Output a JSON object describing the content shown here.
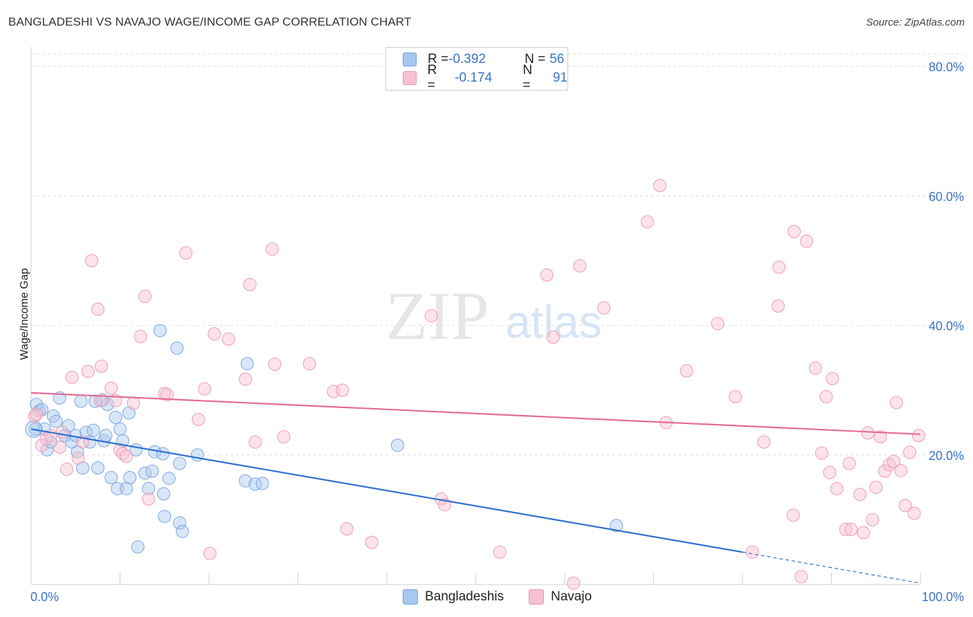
{
  "title": "BANGLADESHI VS NAVAJO WAGE/INCOME GAP CORRELATION CHART",
  "source": "Source: ZipAtlas.com",
  "watermark": {
    "zip": "ZIP",
    "atlas": "atlas"
  },
  "legend": {
    "rows": [
      {
        "r_label": "R = ",
        "r_value": "-0.392",
        "n_label": "N = ",
        "n_value": "56",
        "color": "#a8c8f0",
        "border": "#6f9fde"
      },
      {
        "r_label": "R = ",
        "r_value": "-0.174",
        "n_label": "N = ",
        "n_value": "91",
        "color": "#f8c0d0",
        "border": "#e994ac"
      }
    ]
  },
  "colors": {
    "blue_fill": "#a8c8f0",
    "blue_line": "#2f6fce",
    "pink_fill": "#f8c0d0",
    "pink_line": "#e36b95",
    "tick_label": "#3a74c8",
    "grid": "#dcdcdc"
  },
  "chart_data": {
    "type": "scatter",
    "title": "BANGLADESHI VS NAVAJO WAGE/INCOME GAP CORRELATION CHART",
    "xlabel": "",
    "ylabel": "Wage/Income Gap",
    "xlim": [
      0,
      100
    ],
    "ylim": [
      0,
      80
    ],
    "x_tick_labels": [
      "0.0%",
      "100.0%"
    ],
    "y_ticks": [
      20,
      40,
      60,
      80
    ],
    "y_tick_labels": [
      "20.0%",
      "40.0%",
      "60.0%",
      "80.0%"
    ],
    "grid": "horizontal dashed",
    "legend_position": "bottom-center",
    "series": [
      {
        "name": "Bangladeshis",
        "r": -0.392,
        "n": 56,
        "trend": {
          "x": [
            0,
            80
          ],
          "y": [
            24.0,
            5.0
          ],
          "dashed_extension": {
            "x": [
              80,
              100
            ],
            "y": [
              5.0,
              0.2
            ]
          }
        },
        "points": [
          [
            0.5,
            24.0
          ],
          [
            0.6,
            27.8
          ],
          [
            0.9,
            26.8
          ],
          [
            1.2,
            27.0
          ],
          [
            1.5,
            24.0
          ],
          [
            1.8,
            20.8
          ],
          [
            2.2,
            22.0
          ],
          [
            2.5,
            26.0
          ],
          [
            2.8,
            25.2
          ],
          [
            3.2,
            28.8
          ],
          [
            3.8,
            23.0
          ],
          [
            4.2,
            24.5
          ],
          [
            4.6,
            22.0
          ],
          [
            5.0,
            23.0
          ],
          [
            5.2,
            20.5
          ],
          [
            5.6,
            28.3
          ],
          [
            5.8,
            18.0
          ],
          [
            6.2,
            23.5
          ],
          [
            6.6,
            22.0
          ],
          [
            7.0,
            23.8
          ],
          [
            7.2,
            28.3
          ],
          [
            7.5,
            18.0
          ],
          [
            8.0,
            28.5
          ],
          [
            8.2,
            22.2
          ],
          [
            8.4,
            23.0
          ],
          [
            8.6,
            27.8
          ],
          [
            9.0,
            16.5
          ],
          [
            9.5,
            25.8
          ],
          [
            9.7,
            14.8
          ],
          [
            10.0,
            24.0
          ],
          [
            10.3,
            22.2
          ],
          [
            10.7,
            14.8
          ],
          [
            11.0,
            26.5
          ],
          [
            11.1,
            16.5
          ],
          [
            11.8,
            20.8
          ],
          [
            12.0,
            5.8
          ],
          [
            12.8,
            17.2
          ],
          [
            13.2,
            14.8
          ],
          [
            13.6,
            17.5
          ],
          [
            13.9,
            20.5
          ],
          [
            14.5,
            39.2
          ],
          [
            14.9,
            14.0
          ],
          [
            15.0,
            10.5
          ],
          [
            15.5,
            16.4
          ],
          [
            16.7,
            9.5
          ],
          [
            17.0,
            8.2
          ],
          [
            16.4,
            36.5
          ],
          [
            16.7,
            18.7
          ],
          [
            18.7,
            20.0
          ],
          [
            24.3,
            34.1
          ],
          [
            24.1,
            16.0
          ],
          [
            25.2,
            15.5
          ],
          [
            26.0,
            15.6
          ],
          [
            41.2,
            21.5
          ],
          [
            65.8,
            9.1
          ],
          [
            14.8,
            20.2
          ]
        ]
      },
      {
        "name": "Navajo",
        "r": -0.174,
        "n": 91,
        "trend": {
          "x": [
            0,
            100
          ],
          "y": [
            29.6,
            23.2
          ]
        },
        "points": [
          [
            0.4,
            26.0
          ],
          [
            0.6,
            26.3
          ],
          [
            1.2,
            21.5
          ],
          [
            1.7,
            22.5
          ],
          [
            2.2,
            23.0
          ],
          [
            3.2,
            21.2
          ],
          [
            3.5,
            23.5
          ],
          [
            4.0,
            17.8
          ],
          [
            4.6,
            32.0
          ],
          [
            5.3,
            19.5
          ],
          [
            5.8,
            22.0
          ],
          [
            6.4,
            32.9
          ],
          [
            6.8,
            50.0
          ],
          [
            7.5,
            42.5
          ],
          [
            7.8,
            28.4
          ],
          [
            7.9,
            33.7
          ],
          [
            9.0,
            30.3
          ],
          [
            9.5,
            28.4
          ],
          [
            10.0,
            20.8
          ],
          [
            10.3,
            20.2
          ],
          [
            10.7,
            19.8
          ],
          [
            11.5,
            28.0
          ],
          [
            12.3,
            38.3
          ],
          [
            12.8,
            44.5
          ],
          [
            13.2,
            13.2
          ],
          [
            15.0,
            29.5
          ],
          [
            15.3,
            29.3
          ],
          [
            17.4,
            51.2
          ],
          [
            18.8,
            25.5
          ],
          [
            19.5,
            30.2
          ],
          [
            20.1,
            4.8
          ],
          [
            20.6,
            38.7
          ],
          [
            22.2,
            37.9
          ],
          [
            24.1,
            31.7
          ],
          [
            24.6,
            46.3
          ],
          [
            25.2,
            22.0
          ],
          [
            27.1,
            51.8
          ],
          [
            27.4,
            34.0
          ],
          [
            28.4,
            22.8
          ],
          [
            31.3,
            34.1
          ],
          [
            34.0,
            29.8
          ],
          [
            35.0,
            30.0
          ],
          [
            35.5,
            8.6
          ],
          [
            38.3,
            6.5
          ],
          [
            45.0,
            41.5
          ],
          [
            46.1,
            13.2
          ],
          [
            46.5,
            12.3
          ],
          [
            52.7,
            5.0
          ],
          [
            58.7,
            38.2
          ],
          [
            58.0,
            47.8
          ],
          [
            61.0,
            0.2
          ],
          [
            61.7,
            49.2
          ],
          [
            64.4,
            42.7
          ],
          [
            69.3,
            56.0
          ],
          [
            70.7,
            61.6
          ],
          [
            71.4,
            25.0
          ],
          [
            73.7,
            33.0
          ],
          [
            77.2,
            40.3
          ],
          [
            79.2,
            29.0
          ],
          [
            81.1,
            5.0
          ],
          [
            82.4,
            22.0
          ],
          [
            84.0,
            43.0
          ],
          [
            84.1,
            49.0
          ],
          [
            85.7,
            10.7
          ],
          [
            85.8,
            54.5
          ],
          [
            86.6,
            1.2
          ],
          [
            87.2,
            53.0
          ],
          [
            88.2,
            33.4
          ],
          [
            88.9,
            20.3
          ],
          [
            89.4,
            29.0
          ],
          [
            89.8,
            17.3
          ],
          [
            90.1,
            31.8
          ],
          [
            90.6,
            14.8
          ],
          [
            91.6,
            8.5
          ],
          [
            92.0,
            18.7
          ],
          [
            92.2,
            8.5
          ],
          [
            93.2,
            13.9
          ],
          [
            93.6,
            8.0
          ],
          [
            94.1,
            23.4
          ],
          [
            94.6,
            10.0
          ],
          [
            95.0,
            15.0
          ],
          [
            95.5,
            22.8
          ],
          [
            96.0,
            17.5
          ],
          [
            96.5,
            18.5
          ],
          [
            97.0,
            19.0
          ],
          [
            97.3,
            28.1
          ],
          [
            97.8,
            17.6
          ],
          [
            98.3,
            12.2
          ],
          [
            98.8,
            20.4
          ],
          [
            99.3,
            11.0
          ],
          [
            99.8,
            23.0
          ]
        ]
      }
    ]
  },
  "bottom_legend": [
    {
      "label": "Bangladeshis",
      "color": "#a8c8f0",
      "border": "#6f9fde"
    },
    {
      "label": "Navajo",
      "color": "#f8c0d0",
      "border": "#e994ac"
    }
  ]
}
